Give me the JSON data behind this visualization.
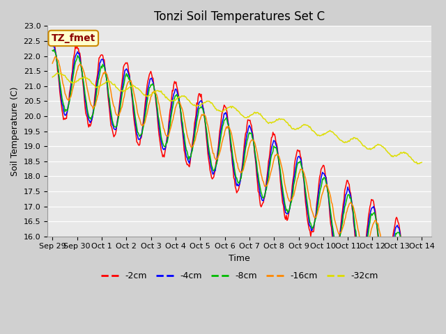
{
  "title": "Tonzi Soil Temperatures Set C",
  "xlabel": "Time",
  "ylabel": "Soil Temperature (C)",
  "ylim": [
    16.0,
    23.0
  ],
  "yticks": [
    16.0,
    16.5,
    17.0,
    17.5,
    18.0,
    18.5,
    19.0,
    19.5,
    20.0,
    20.5,
    21.0,
    21.5,
    22.0,
    22.5,
    23.0
  ],
  "series_colors": [
    "#ff0000",
    "#0000ff",
    "#00bb00",
    "#ff8800",
    "#dddd00"
  ],
  "series_labels": [
    "-2cm",
    "-4cm",
    "-8cm",
    "-16cm",
    "-32cm"
  ],
  "n_points": 500,
  "annotation_text": "TZ_fmet",
  "annotation_bg": "#ffffcc",
  "annotation_border": "#cc8800",
  "title_fontsize": 12,
  "axis_label_fontsize": 9,
  "tick_fontsize": 8,
  "legend_fontsize": 9,
  "linewidth": 1.1,
  "xtick_labels": [
    "Sep 29",
    "Sep 30",
    "Oct 1",
    "Oct 2",
    "Oct 3",
    "Oct 4",
    "Oct 5",
    "Oct 6",
    "Oct 7",
    "Oct 8",
    "Oct 9",
    "Oct 10",
    "Oct 11",
    "Oct 12",
    "Oct 13",
    "Oct 14"
  ],
  "xtick_positions": [
    0,
    1,
    2,
    3,
    4,
    5,
    6,
    7,
    8,
    9,
    10,
    11,
    12,
    13,
    14,
    15
  ],
  "fig_bg": "#d0d0d0",
  "ax_bg": "#e8e8e8",
  "grid_color": "#ffffff"
}
